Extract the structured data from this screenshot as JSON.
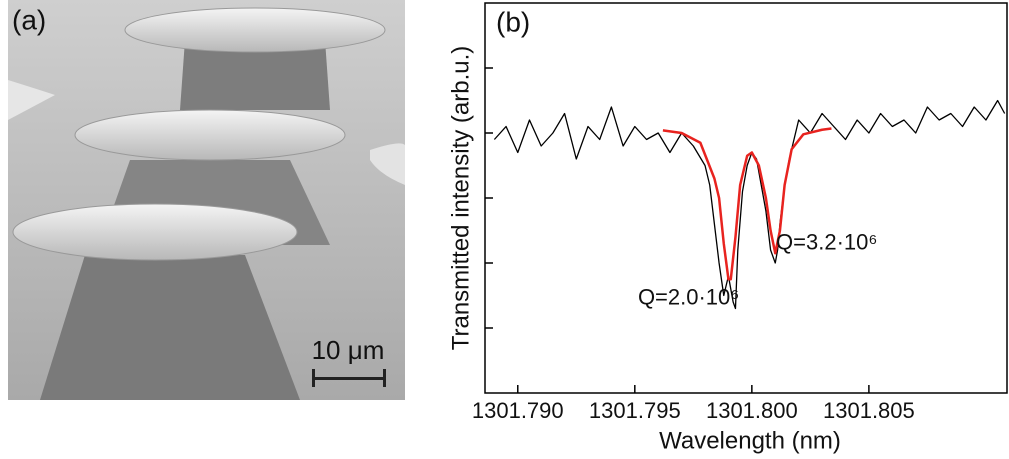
{
  "panel_a": {
    "label": "(a)",
    "scale_bar": "10 μm"
  },
  "chart_data": {
    "type": "line",
    "label": "(b)",
    "x_label": "Wavelength (nm)",
    "y_label": "Transmitted intensity (arb.u.)",
    "xlim": [
      1301.7886,
      1301.8109
    ],
    "xticks": [
      1301.79,
      1301.795,
      1301.8,
      1301.805
    ],
    "xtick_labels": [
      "1301.790",
      "1301.795",
      "1301.800",
      "1301.805"
    ],
    "ylim": [
      0,
      6
    ],
    "yticks": [
      1,
      2,
      3,
      4,
      5
    ],
    "series": [
      {
        "color": "#000000",
        "x": [
          1301.789,
          1301.7895,
          1301.79,
          1301.7905,
          1301.791,
          1301.7915,
          1301.792,
          1301.7925,
          1301.793,
          1301.7935,
          1301.794,
          1301.7945,
          1301.795,
          1301.7955,
          1301.796,
          1301.7965,
          1301.797,
          1301.7975,
          1301.798,
          1301.7982,
          1301.7984,
          1301.7986,
          1301.7988,
          1301.799,
          1301.7991,
          1301.7992,
          1301.7993,
          1301.7994,
          1301.7996,
          1301.7998,
          1301.8,
          1301.8002,
          1301.8004,
          1301.8006,
          1301.8008,
          1301.801,
          1301.8011,
          1301.8012,
          1301.8014,
          1301.8016,
          1301.8018,
          1301.802,
          1301.8025,
          1301.803,
          1301.8035,
          1301.804,
          1301.8045,
          1301.805,
          1301.8055,
          1301.806,
          1301.8065,
          1301.807,
          1301.8075,
          1301.808,
          1301.8085,
          1301.809,
          1301.8095,
          1301.81,
          1301.8105,
          1301.8108
        ],
        "values": [
          3.9,
          4.1,
          3.7,
          4.2,
          3.8,
          4.0,
          4.3,
          3.6,
          4.1,
          3.9,
          4.4,
          3.8,
          4.1,
          3.9,
          4.0,
          3.7,
          4.0,
          3.8,
          3.5,
          3.2,
          2.6,
          2.0,
          1.5,
          1.8,
          1.6,
          1.4,
          1.3,
          2.2,
          3.1,
          3.5,
          3.7,
          3.6,
          3.2,
          2.8,
          2.2,
          2.0,
          2.2,
          2.6,
          3.2,
          3.6,
          3.9,
          4.2,
          4.0,
          4.3,
          4.1,
          3.9,
          4.2,
          4.0,
          4.3,
          4.1,
          4.2,
          4.0,
          4.4,
          4.2,
          4.3,
          4.1,
          4.4,
          4.2,
          4.5,
          4.3
        ]
      },
      {
        "color": "#e8231f",
        "x": [
          1301.7962,
          1301.797,
          1301.7978,
          1301.7984,
          1301.7986,
          1301.7988,
          1301.799,
          1301.7991,
          1301.7993,
          1301.7995,
          1301.7998,
          1301.8,
          1301.8003,
          1301.8006,
          1301.8008,
          1301.801,
          1301.8012,
          1301.8014,
          1301.8017,
          1301.8022,
          1301.803,
          1301.8034
        ],
        "values": [
          4.04,
          4.0,
          3.85,
          3.3,
          3.0,
          2.3,
          1.75,
          1.75,
          2.4,
          3.2,
          3.65,
          3.7,
          3.5,
          3.0,
          2.5,
          2.15,
          2.5,
          3.2,
          3.75,
          3.98,
          4.05,
          4.07
        ]
      }
    ],
    "annotations": [
      {
        "text": "Q=2.0·10⁶",
        "x": 1301.7973,
        "y": 1.45
      },
      {
        "text": "Q=3.2·10⁶",
        "x": 1301.8032,
        "y": 2.3
      }
    ]
  }
}
